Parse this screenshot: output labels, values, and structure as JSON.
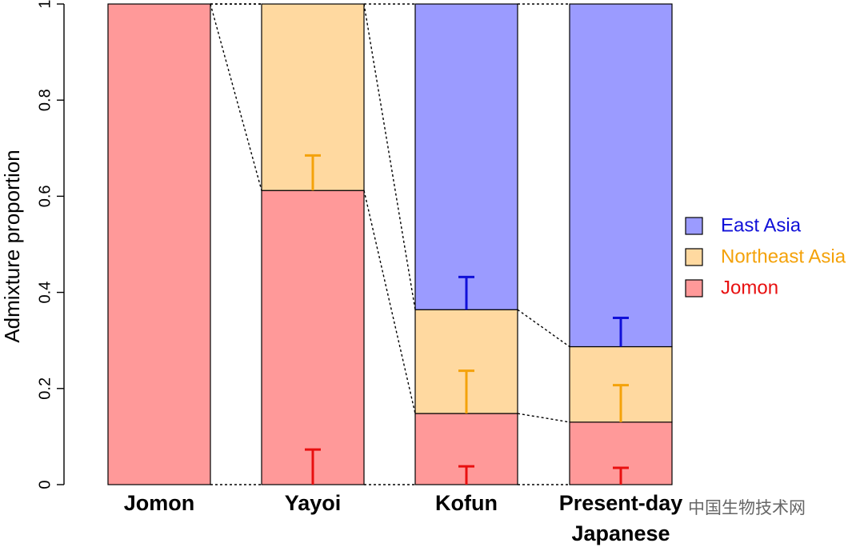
{
  "chart_data": {
    "type": "bar",
    "stacked": true,
    "ylabel": "Admixture proportion",
    "ylim": [
      0,
      1
    ],
    "y_ticks": [
      "0",
      "0.2",
      "0.4",
      "0.6",
      "0.8",
      "1"
    ],
    "y_tick_values": [
      0,
      0.2,
      0.4,
      0.6,
      0.8,
      1.0
    ],
    "categories": [
      "Jomon",
      "Yayoi",
      "Kofun",
      "Present-day\nJapanese"
    ],
    "series": [
      {
        "name": "Jomon",
        "color": "#ff9999",
        "label_color": "#e81010",
        "values": [
          1.0,
          0.612,
          0.148,
          0.13
        ],
        "error_upper": [
          null,
          0.073,
          0.038,
          0.035
        ]
      },
      {
        "name": "Northeast Asia",
        "color": "#ffd9a0",
        "label_color": "#f4a20a",
        "values": [
          0.0,
          0.388,
          0.216,
          0.157
        ],
        "error_upper": [
          null,
          0.685,
          0.237,
          0.207
        ]
      },
      {
        "name": "East Asia",
        "color": "#9b9bff",
        "label_color": "#1010d8",
        "values": [
          0.0,
          0.0,
          0.636,
          0.713
        ],
        "error_upper": [
          null,
          null,
          0.432,
          0.347
        ]
      }
    ],
    "legend": {
      "position": "right",
      "entries": [
        "East Asia",
        "Northeast Asia",
        "Jomon"
      ]
    },
    "grid": false
  },
  "watermark": "中国生物技术网"
}
